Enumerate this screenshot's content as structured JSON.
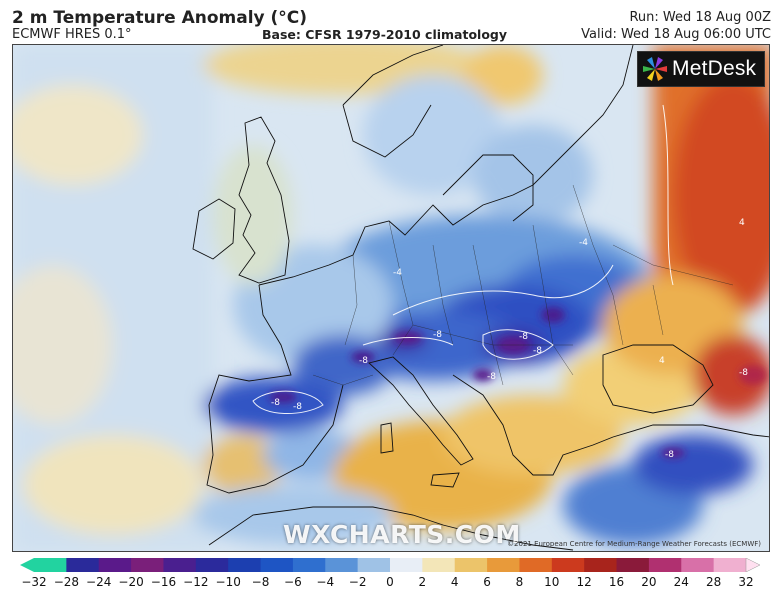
{
  "header": {
    "title": "2 m Temperature Anomaly (°C)",
    "model": "ECMWF HRES 0.1°",
    "base": "Base: CFSR 1979-2010 climatology",
    "run": "Run: Wed 18 Aug 00Z",
    "valid": "Valid: Wed 18 Aug 06:00 UTC"
  },
  "branding": {
    "logo_text": "MetDesk",
    "watermark": "WXCHARTS.COM",
    "copyright": "©2021 European Centre for Medium-Range Weather Forecasts (ECMWF)"
  },
  "legend": {
    "ticks": [
      "−32",
      "−28",
      "−24",
      "−20",
      "−16",
      "−12",
      "−10",
      "−8",
      "−6",
      "−4",
      "−2",
      "0",
      "2",
      "4",
      "6",
      "8",
      "10",
      "12",
      "16",
      "20",
      "24",
      "28",
      "32"
    ],
    "colors": [
      "#22d3a0",
      "#2a2a9a",
      "#5a1a8a",
      "#7a1f7a",
      "#4a1f8f",
      "#2b2a9c",
      "#1c3fb0",
      "#1e55c4",
      "#2f6fcf",
      "#5a93d8",
      "#9fc2e6",
      "#e8eef6",
      "#f3e6b8",
      "#ecc46a",
      "#e89a3a",
      "#e06a26",
      "#cc3a1e",
      "#a8241c",
      "#8a1a3a",
      "#b03070",
      "#d870a8",
      "#f0b0d0",
      "#ffe0f0"
    ]
  },
  "colors": {
    "ocean_neutral": "#d6e4f1",
    "cold_light": "#9fc2e6",
    "cold_mid": "#4f86d4",
    "cold_deep": "#1e3fb0",
    "cold_extreme": "#4a1a7a",
    "warm_light": "#f2d58a",
    "warm_mid": "#e7a84a",
    "warm_hot": "#e06a26",
    "warm_extreme": "#cc3a1e"
  },
  "contour_labels": [
    "-8",
    "-8",
    "-8",
    "-8",
    "-8",
    "-8",
    "-8",
    "-8",
    "-4",
    "-4",
    "4",
    "4",
    "-8"
  ]
}
